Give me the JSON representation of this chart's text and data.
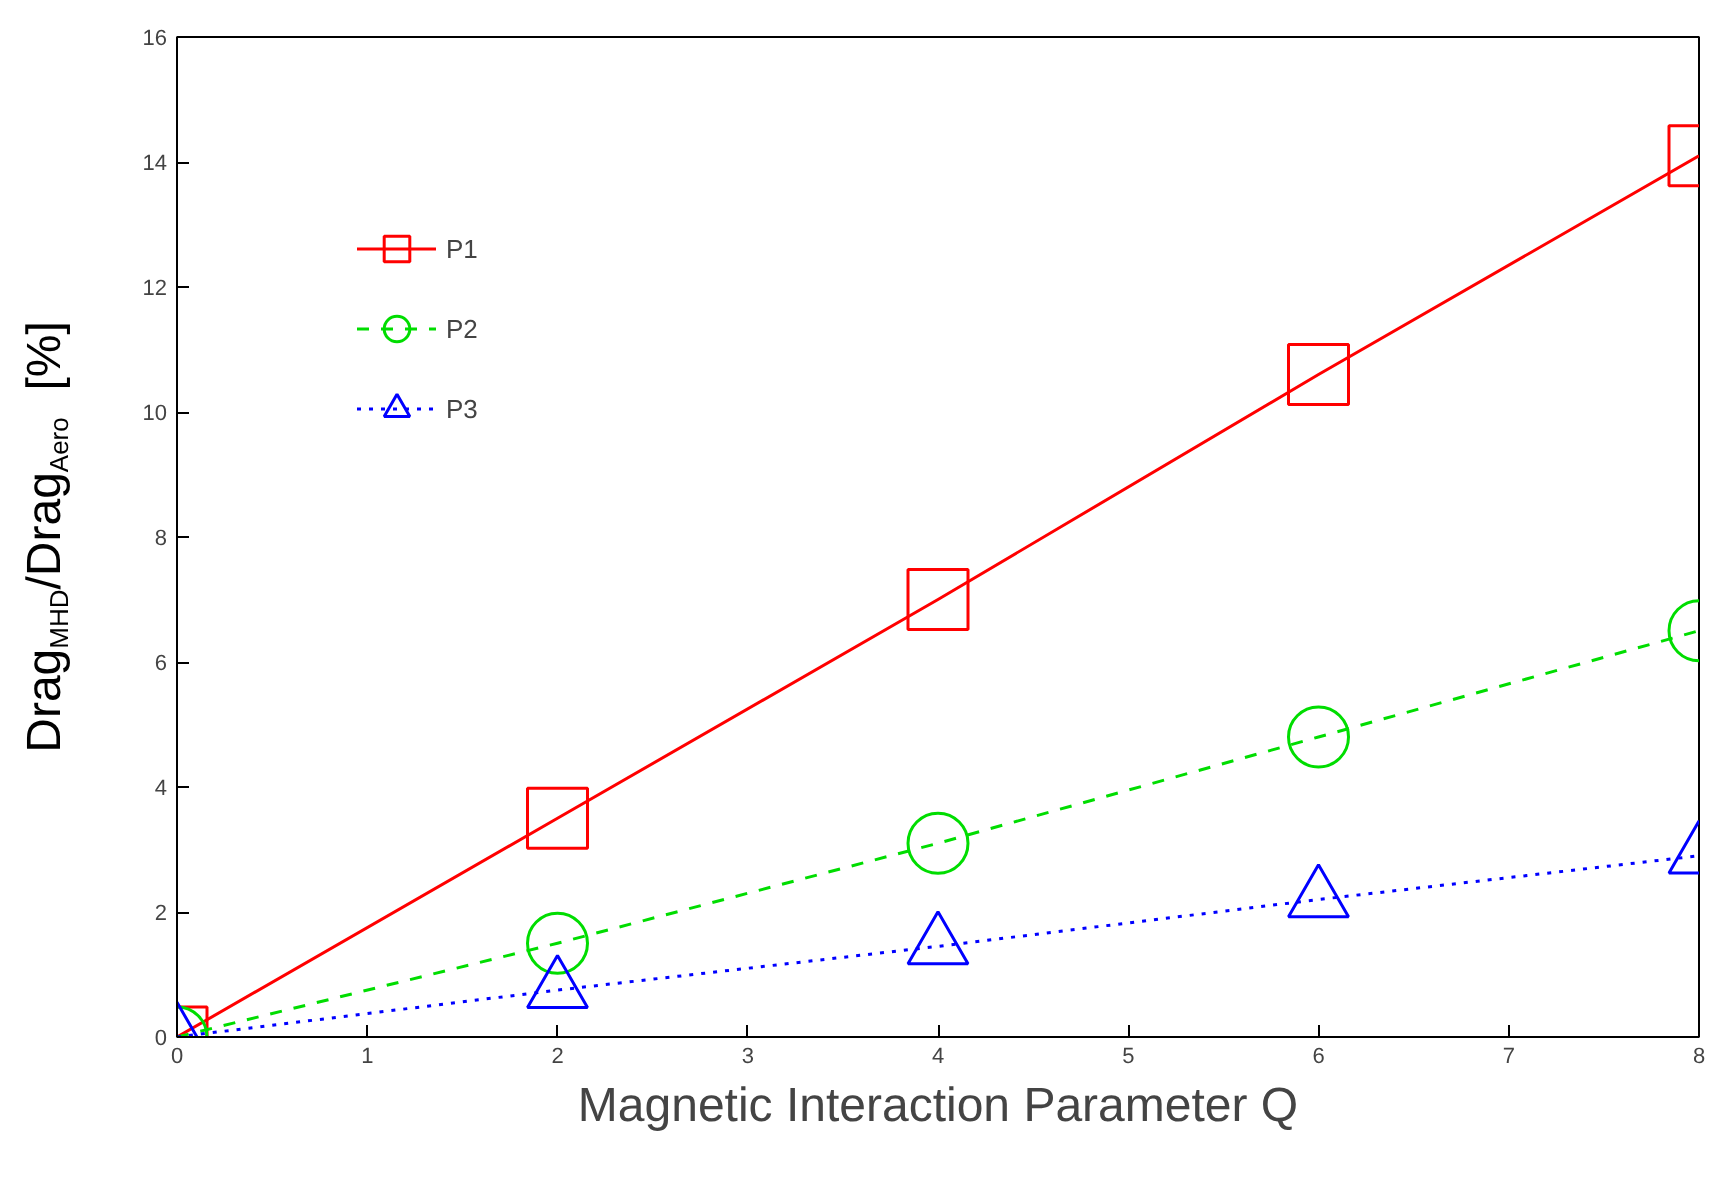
{
  "chart_data": {
    "type": "line",
    "xlabel": "Magnetic Interaction Parameter Q",
    "ylabel": "Drag$_{MHD}$/Drag$_{Aero}$  [%]",
    "x": [
      0,
      2,
      4,
      6,
      8
    ],
    "series": [
      {
        "name": "P1",
        "color": "#ff0000",
        "marker": "square",
        "line_style": "solid",
        "values": [
          0,
          3.5,
          7.0,
          10.6,
          14.1
        ]
      },
      {
        "name": "P2",
        "color": "#00dd00",
        "marker": "circle",
        "line_style": "dashed",
        "values": [
          0,
          1.5,
          3.1,
          4.8,
          6.5
        ]
      },
      {
        "name": "P3",
        "color": "#0000ff",
        "marker": "triangle",
        "line_style": "dotted",
        "values": [
          0,
          0.75,
          1.45,
          2.2,
          2.9
        ]
      }
    ],
    "xlim": [
      0,
      8
    ],
    "ylim": [
      0,
      16
    ],
    "xticks": [
      0,
      1,
      2,
      3,
      4,
      5,
      6,
      7,
      8
    ],
    "yticks": [
      0,
      2,
      4,
      6,
      8,
      10,
      12,
      14,
      16
    ],
    "grid": false,
    "legend": "top left"
  }
}
